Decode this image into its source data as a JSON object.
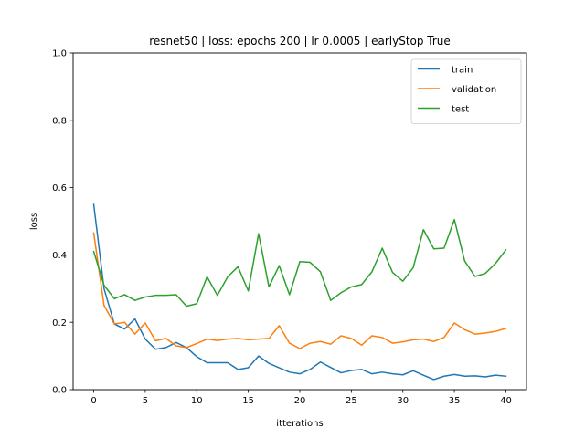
{
  "chart_data": {
    "type": "line",
    "title": "resnet50 |  loss: epochs 200 | lr 0.0005 | earlyStop True",
    "xlabel": "itterations",
    "ylabel": "loss",
    "xlim": [
      -2,
      42
    ],
    "ylim": [
      0,
      1.0
    ],
    "xticks": [
      0,
      5,
      10,
      15,
      20,
      25,
      30,
      35,
      40
    ],
    "xtick_labels": [
      "0",
      "5",
      "10",
      "15",
      "20",
      "25",
      "30",
      "35",
      "40"
    ],
    "yticks": [
      0,
      0.2,
      0.4,
      0.6,
      0.8,
      1.0
    ],
    "ytick_labels": [
      "0.0",
      "0.2",
      "0.4",
      "0.6",
      "0.8",
      "1.0"
    ],
    "grid": false,
    "legend_position": "top-right",
    "x": [
      0,
      1,
      2,
      3,
      4,
      5,
      6,
      7,
      8,
      9,
      10,
      11,
      12,
      13,
      14,
      15,
      16,
      17,
      18,
      19,
      20,
      21,
      22,
      23,
      24,
      25,
      26,
      27,
      28,
      29,
      30,
      31,
      32,
      33,
      34,
      35,
      36,
      37,
      38,
      39,
      40
    ],
    "series": [
      {
        "name": "train",
        "color": "#1f77b4",
        "values": [
          0.55,
          0.3,
          0.195,
          0.18,
          0.21,
          0.15,
          0.12,
          0.125,
          0.14,
          0.125,
          0.098,
          0.08,
          0.08,
          0.08,
          0.06,
          0.065,
          0.1,
          0.078,
          0.065,
          0.052,
          0.047,
          0.06,
          0.082,
          0.066,
          0.05,
          0.057,
          0.06,
          0.047,
          0.052,
          0.047,
          0.044,
          0.056,
          0.043,
          0.03,
          0.04,
          0.045,
          0.04,
          0.041,
          0.038,
          0.043,
          0.04
        ]
      },
      {
        "name": "validation",
        "color": "#ff7f0e",
        "values": [
          0.465,
          0.25,
          0.195,
          0.2,
          0.165,
          0.198,
          0.145,
          0.152,
          0.13,
          0.125,
          0.137,
          0.15,
          0.146,
          0.15,
          0.152,
          0.148,
          0.15,
          0.152,
          0.19,
          0.138,
          0.122,
          0.138,
          0.143,
          0.135,
          0.16,
          0.152,
          0.132,
          0.16,
          0.155,
          0.138,
          0.142,
          0.148,
          0.15,
          0.143,
          0.155,
          0.198,
          0.178,
          0.165,
          0.168,
          0.173,
          0.182
        ]
      },
      {
        "name": "test",
        "color": "#2ca02c",
        "values": [
          0.41,
          0.31,
          0.27,
          0.282,
          0.265,
          0.275,
          0.28,
          0.28,
          0.282,
          0.248,
          0.255,
          0.335,
          0.28,
          0.335,
          0.365,
          0.293,
          0.463,
          0.305,
          0.368,
          0.282,
          0.38,
          0.378,
          0.35,
          0.265,
          0.288,
          0.305,
          0.312,
          0.35,
          0.42,
          0.348,
          0.322,
          0.362,
          0.475,
          0.418,
          0.42,
          0.505,
          0.382,
          0.336,
          0.345,
          0.375,
          0.415
        ]
      }
    ]
  }
}
